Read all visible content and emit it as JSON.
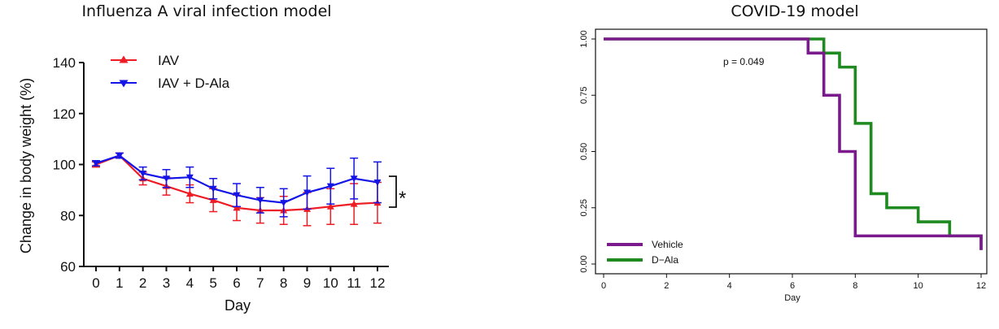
{
  "chart_data": [
    {
      "type": "line",
      "title": "Influenza A viral infection model",
      "xlabel": "Day",
      "ylabel": "Change in body weight (%)",
      "xlim": [
        0,
        12
      ],
      "ylim": [
        60,
        140
      ],
      "x_ticks": [
        "0",
        "1",
        "2",
        "3",
        "4",
        "5",
        "6",
        "7",
        "8",
        "9",
        "10",
        "11",
        "12"
      ],
      "y_ticks": [
        "60",
        "80",
        "100",
        "120",
        "140"
      ],
      "legend_position": "top-left",
      "significance": "*",
      "x": [
        0,
        1,
        2,
        3,
        4,
        5,
        6,
        7,
        8,
        9,
        10,
        11,
        12
      ],
      "series": [
        {
          "name": "IAV",
          "color": "#ee1c24",
          "marker": "triangle-up",
          "values": [
            100,
            103.5,
            94.5,
            91.5,
            88.5,
            86,
            83,
            82,
            82,
            82.5,
            83.5,
            84.5,
            85
          ],
          "errors": [
            1,
            1,
            2.5,
            3.5,
            3.5,
            4.5,
            5,
            5,
            5.5,
            6.5,
            7,
            8,
            8
          ]
        },
        {
          "name": "IAV + D-Ala",
          "color": "#1414e6",
          "marker": "triangle-down",
          "values": [
            100.5,
            103.5,
            96.5,
            94.5,
            95,
            90.5,
            88,
            86,
            85,
            89,
            91.5,
            94.5,
            93
          ],
          "errors": [
            1,
            1,
            2.5,
            3.5,
            4,
            4,
            4.5,
            5,
            5.5,
            6.5,
            7,
            8,
            8
          ]
        }
      ],
      "legend_labels": [
        "IAV",
        "IAV +  D-Ala"
      ]
    },
    {
      "type": "line",
      "subtype": "kaplan-meier",
      "title": "COVID-19 model",
      "xlabel": "Day",
      "ylabel": "",
      "xlim": [
        0,
        12
      ],
      "ylim": [
        0,
        1
      ],
      "x_ticks": [
        "0",
        "2",
        "4",
        "6",
        "8",
        "10",
        "12"
      ],
      "y_ticks": [
        "0.00",
        "0.25",
        "0.50",
        "0.75",
        "1.00"
      ],
      "legend_position": "bottom-left",
      "annotation": "p = 0.049",
      "series": [
        {
          "name": "Vehicle",
          "color": "#7a1a8c",
          "x": [
            0,
            6.5,
            7,
            7.5,
            8,
            12,
            12
          ],
          "y": [
            1.0,
            0.9375,
            0.75,
            0.5,
            0.125,
            0.125,
            0.0625
          ]
        },
        {
          "name": "D−Ala",
          "color": "#1f8a1f",
          "x": [
            0,
            7,
            7.5,
            8,
            8.5,
            9,
            10,
            11,
            12,
            12
          ],
          "y": [
            1.0,
            0.9375,
            0.875,
            0.625,
            0.3125,
            0.25,
            0.1875,
            0.125,
            0.125,
            0.0625
          ]
        }
      ]
    }
  ]
}
